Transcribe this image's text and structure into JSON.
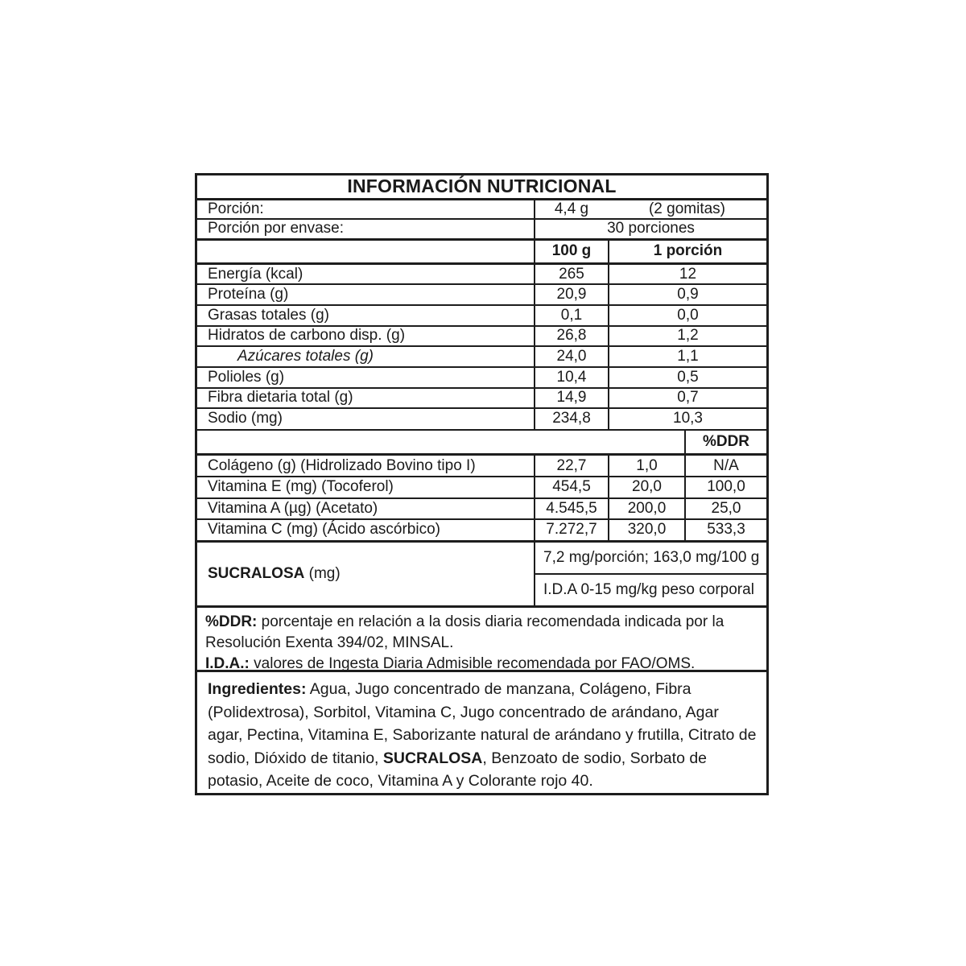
{
  "title": "INFORMACIÓN NUTRICIONAL",
  "serving": {
    "label": "Porción:",
    "value": "4,4 g",
    "note": "(2 gomitas)",
    "per_pack_label": "Porción por envase:",
    "per_pack_value": "30 porciones"
  },
  "columns": {
    "per_100g": "100 g",
    "per_portion": "1 porción",
    "ddr": "%DDR"
  },
  "nutrients": [
    {
      "label": "Energía (kcal)",
      "per100": "265",
      "portion": "12"
    },
    {
      "label": "Proteína (g)",
      "per100": "20,9",
      "portion": "0,9"
    },
    {
      "label": "Grasas totales (g)",
      "per100": "0,1",
      "portion": "0,0"
    },
    {
      "label": "Hidratos de carbono disp. (g)",
      "per100": "26,8",
      "portion": "1,2"
    },
    {
      "label": "Azúcares totales (g)",
      "per100": "24,0",
      "portion": "1,1"
    },
    {
      "label": "Polioles (g)",
      "per100": "10,4",
      "portion": "0,5"
    },
    {
      "label": "Fibra dietaria total (g)",
      "per100": "14,9",
      "portion": "0,7"
    },
    {
      "label": "Sodio (mg)",
      "per100": "234,8",
      "portion": "10,3"
    }
  ],
  "ddr_rows": [
    {
      "label": "Colágeno (g) (Hidrolizado Bovino tipo I)",
      "per100": "22,7",
      "portion": "1,0",
      "ddr": "N/A"
    },
    {
      "label": "Vitamina E (mg) (Tocoferol)",
      "per100": "454,5",
      "portion": "20,0",
      "ddr": "100,0"
    },
    {
      "label": "Vitamina A (µg) (Acetato)",
      "per100": "4.545,5",
      "portion": "200,0",
      "ddr": "25,0"
    },
    {
      "label": "Vitamina C (mg) (Ácido ascórbico)",
      "per100": "7.272,7",
      "portion": "320,0",
      "ddr": "533,3"
    }
  ],
  "sucralosa": {
    "name": "SUCRALOSA",
    "unit": "(mg)",
    "line1": "7,2 mg/porción; 163,0 mg/100 g",
    "line2": "I.D.A 0-15 mg/kg peso corporal"
  },
  "footnotes": {
    "ddr_term": "%DDR:",
    "ddr_text": "porcentaje en relación a la dosis diaria recomendada indicada por la Resolución Exenta 394/02, MINSAL.",
    "ida_term": "I.D.A.:",
    "ida_text": "valores de Ingesta Diaria Admisible recomendada por FAO/OMS."
  },
  "ingredients": {
    "term": "Ingredientes:",
    "part1": "Agua, Jugo concentrado de manzana, Colágeno, Fibra (Polidextrosa), Sorbitol, Vitamina C, Jugo concentrado de arándano, Agar agar, Pectina, Vitamina E, Saborizante natural de arándano y frutilla, Citrato de sodio, Dióxido de titanio,",
    "highlight": "SUCRALOSA",
    "part2": ", Benzoato de sodio, Sorbato de potasio, Aceite de coco, Vitamina A y Colorante rojo 40."
  }
}
